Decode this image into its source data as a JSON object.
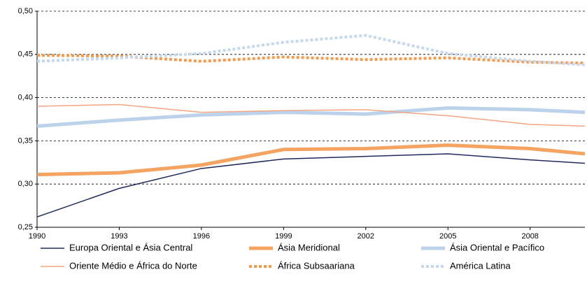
{
  "chart_data": {
    "type": "line",
    "x": [
      1990,
      1993,
      1996,
      1999,
      2002,
      2005,
      2008,
      2010
    ],
    "xlim": [
      1990,
      2010
    ],
    "xticks": [
      1990,
      1993,
      1996,
      1999,
      2002,
      2005,
      2008
    ],
    "ylim": [
      0.25,
      0.5
    ],
    "yticks": [
      {
        "value": 0.25,
        "label": "0,25"
      },
      {
        "value": 0.3,
        "label": "0,30"
      },
      {
        "value": 0.35,
        "label": "0,35"
      },
      {
        "value": 0.4,
        "label": "0,40"
      },
      {
        "value": 0.45,
        "label": "0,45"
      },
      {
        "value": 0.5,
        "label": "0,50"
      }
    ],
    "grid": true,
    "legend": "bottom",
    "series": [
      {
        "name": "Europa Oriental e Ásia Central",
        "color": "#1f2a5c",
        "width": 1.5,
        "dash": false,
        "values": [
          0.262,
          0.295,
          0.318,
          0.329,
          0.332,
          0.335,
          0.328,
          0.324
        ]
      },
      {
        "name": "Ásia Meridional",
        "color": "#f4a460",
        "width": 5,
        "dash": false,
        "values": [
          0.311,
          0.313,
          0.322,
          0.34,
          0.341,
          0.345,
          0.341,
          0.335
        ]
      },
      {
        "name": "Ásia Oriental e Pacífico",
        "color": "#bcd2ea",
        "width": 5,
        "dash": false,
        "values": [
          0.367,
          0.374,
          0.38,
          0.383,
          0.381,
          0.388,
          0.386,
          0.383
        ]
      },
      {
        "name": "Oriente Médio e África do Norte",
        "color": "#f4a582",
        "width": 1.5,
        "dash": false,
        "values": [
          0.39,
          0.392,
          0.383,
          0.385,
          0.386,
          0.379,
          0.369,
          0.367
        ]
      },
      {
        "name": "África Subsaariana",
        "color": "#f39a4c",
        "width": 4,
        "dash": true,
        "values": [
          0.449,
          0.448,
          0.442,
          0.447,
          0.444,
          0.446,
          0.441,
          0.44
        ]
      },
      {
        "name": "América Latina",
        "color": "#c5d8ee",
        "width": 4,
        "dash": true,
        "values": [
          0.442,
          0.446,
          0.451,
          0.464,
          0.472,
          0.451,
          0.442,
          0.438
        ]
      }
    ]
  }
}
